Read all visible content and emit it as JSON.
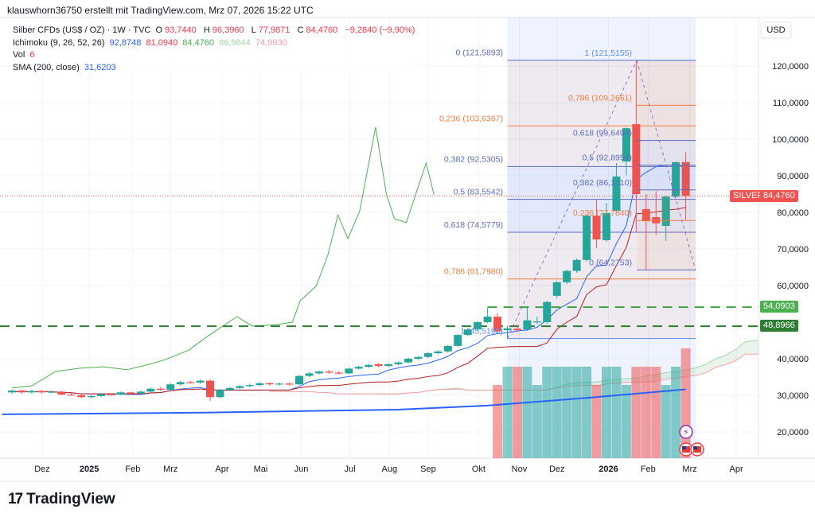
{
  "credit": "klauswhorn36750 erstellt mit TradingView.com, Mrz 07, 2026 15:22 UTC",
  "legend": {
    "symbol": "Silber CFDs (US$ / OZ) · 1W · TVC",
    "o_label": "O",
    "o": "93,7440",
    "h_label": "H",
    "h": "96,3960",
    "l_label": "L",
    "l": "77,9871",
    "c_label": "C",
    "c": "84,4760",
    "change": "−9,2840 (−9,90%)",
    "ichimoku_label": "Ichimoku (9, 26, 52, 26)",
    "ichimoku_values": [
      "92,8748",
      "81,0940",
      "84,4760",
      "86,9844",
      "74,9930"
    ],
    "vol_label": "Vol",
    "vol": "6",
    "sma_label": "SMA (200, close)",
    "sma": "31,6203"
  },
  "currency": "USD",
  "price_tags": {
    "symbol_name": "SILVER",
    "last": "84,4760",
    "last_value": 84.476,
    "level1": "54,0903",
    "level1_value": 54.0903,
    "level2": "48,8966",
    "level2_value": 48.8966
  },
  "logo_text": "TradingView",
  "colors": {
    "up": "#26a69a",
    "down": "#ef5350",
    "tenkan": "#2962ff",
    "kijun": "#b71c1c",
    "sma": "#2962ff",
    "overlay": "#4caf50",
    "fib_blue": "#5c6bc0",
    "fib_orange": "#f57c3a",
    "dash": "#43a047"
  },
  "chart_data": {
    "type": "candlestick",
    "title": "Silber CFDs (US$ / OZ) · 1W · TVC",
    "ylim": [
      14,
      134
    ],
    "y_ticks": [
      {
        "value": 120,
        "label": "120,0000"
      },
      {
        "value": 110,
        "label": "110,0000"
      },
      {
        "value": 100,
        "label": "100,0000"
      },
      {
        "value": 90,
        "label": "90,0000"
      },
      {
        "value": 80,
        "label": "80,0000"
      },
      {
        "value": 70,
        "label": "70,0000"
      },
      {
        "value": 60,
        "label": "60,0000"
      },
      {
        "value": 40,
        "label": "40,0000"
      },
      {
        "value": 30,
        "label": "30,0000"
      },
      {
        "value": 20,
        "label": "20,0000"
      }
    ],
    "x_ticks": [
      {
        "week": 3.05,
        "label": "Dez"
      },
      {
        "week": 7.8,
        "label": "2025",
        "bold": true
      },
      {
        "week": 12.2,
        "label": "Feb"
      },
      {
        "week": 16,
        "label": "Mrz"
      },
      {
        "week": 21.2,
        "label": "Apr"
      },
      {
        "week": 25.1,
        "label": "Mai"
      },
      {
        "week": 29.2,
        "label": "Jun"
      },
      {
        "week": 34.1,
        "label": "Jul"
      },
      {
        "week": 38.1,
        "label": "Aug"
      },
      {
        "week": 42,
        "label": "Sep"
      },
      {
        "week": 47.1,
        "label": "Okt"
      },
      {
        "week": 51.2,
        "label": "Nov"
      },
      {
        "week": 55,
        "label": "Dez"
      },
      {
        "week": 60.2,
        "label": "2026",
        "bold": true
      },
      {
        "week": 64.2,
        "label": "Feb"
      },
      {
        "week": 68.4,
        "label": "Mrz"
      },
      {
        "week": 73.1,
        "label": "Apr"
      }
    ],
    "candles_ohlc": [
      [
        30.8,
        31.6,
        30.4,
        31.3
      ],
      [
        31.3,
        31.6,
        30.4,
        30.8
      ],
      [
        30.8,
        31.5,
        30.5,
        31.2
      ],
      [
        31.2,
        31.4,
        30.5,
        30.8
      ],
      [
        30.8,
        31.3,
        30.5,
        31.0
      ],
      [
        31.0,
        31.2,
        30.0,
        30.2
      ],
      [
        30.2,
        30.5,
        29.8,
        30.0
      ],
      [
        30.0,
        30.3,
        29.2,
        29.5
      ],
      [
        29.5,
        30.1,
        29.2,
        29.8
      ],
      [
        29.8,
        30.6,
        29.5,
        30.3
      ],
      [
        30.3,
        30.6,
        29.9,
        30.2
      ],
      [
        30.2,
        31.1,
        30.0,
        30.8
      ],
      [
        30.8,
        31.0,
        30.2,
        30.5
      ],
      [
        30.5,
        31.3,
        30.3,
        31.0
      ],
      [
        31.0,
        32.1,
        30.8,
        31.8
      ],
      [
        31.8,
        32.3,
        31.2,
        31.5
      ],
      [
        31.5,
        33.3,
        31.3,
        33.0
      ],
      [
        33.0,
        33.9,
        32.7,
        33.6
      ],
      [
        33.6,
        34.0,
        33.2,
        33.5
      ],
      [
        33.5,
        34.3,
        33.2,
        34.0
      ],
      [
        34.0,
        34.4,
        28.5,
        29.5
      ],
      [
        29.5,
        31.8,
        29.2,
        31.5
      ],
      [
        31.5,
        32.3,
        31.2,
        32.0
      ],
      [
        32.0,
        32.8,
        31.7,
        32.5
      ],
      [
        32.5,
        33.1,
        32.2,
        32.8
      ],
      [
        32.8,
        33.6,
        32.5,
        33.3
      ],
      [
        33.3,
        33.6,
        32.7,
        33.0
      ],
      [
        33.0,
        33.5,
        32.7,
        33.2
      ],
      [
        33.2,
        33.5,
        32.7,
        33.0
      ],
      [
        33.0,
        35.6,
        32.8,
        35.3
      ],
      [
        35.3,
        36.3,
        35.0,
        36.0
      ],
      [
        36.0,
        36.8,
        35.7,
        36.5
      ],
      [
        36.5,
        36.9,
        35.9,
        36.2
      ],
      [
        36.2,
        36.6,
        35.7,
        36.0
      ],
      [
        36.0,
        37.6,
        35.8,
        37.3
      ],
      [
        37.3,
        38.1,
        37.0,
        37.8
      ],
      [
        37.8,
        38.6,
        37.5,
        38.3
      ],
      [
        38.5,
        38.8,
        37.7,
        38.0
      ],
      [
        38.0,
        38.8,
        37.7,
        38.5
      ],
      [
        38.5,
        39.3,
        38.2,
        39.0
      ],
      [
        39.0,
        40.3,
        38.7,
        40.0
      ],
      [
        40.0,
        40.8,
        39.7,
        40.5
      ],
      [
        40.5,
        41.8,
        40.2,
        41.5
      ],
      [
        41.5,
        42.3,
        41.2,
        42.0
      ],
      [
        42.0,
        43.8,
        41.7,
        43.5
      ],
      [
        43.5,
        46.8,
        43.2,
        46.5
      ],
      [
        46.5,
        48.3,
        46.2,
        48.0
      ],
      [
        48.0,
        50.3,
        47.7,
        50.0
      ],
      [
        50.0,
        54.0,
        49.7,
        51.5
      ],
      [
        51.5,
        52.5,
        47.0,
        47.5
      ],
      [
        47.8,
        49.0,
        45.5,
        48.3
      ],
      [
        48.2,
        49.3,
        47.3,
        47.8
      ],
      [
        48.0,
        54.0,
        47.6,
        50.5
      ],
      [
        50.0,
        51.5,
        49.5,
        50.2
      ],
      [
        50.0,
        55.8,
        49.6,
        55.5
      ],
      [
        57.2,
        61.2,
        56.6,
        60.9
      ],
      [
        60.9,
        64.3,
        60.4,
        64.0
      ],
      [
        64.0,
        67.4,
        63.5,
        67.0
      ],
      [
        67.0,
        79.4,
        66.6,
        79.1
      ],
      [
        79.1,
        83.5,
        70.2,
        72.6
      ],
      [
        72.4,
        82.6,
        72.0,
        79.8
      ],
      [
        80.4,
        93.5,
        80.0,
        89.8
      ],
      [
        93.9,
        103.2,
        90.2,
        103.0
      ],
      [
        104.1,
        121.5,
        74.6,
        85.0
      ],
      [
        80.9,
        85.0,
        64.3,
        77.6
      ],
      [
        78.7,
        85.8,
        73.9,
        77.0
      ],
      [
        76.3,
        84.6,
        72.2,
        84.3
      ],
      [
        84.3,
        94.0,
        84.0,
        93.7
      ],
      [
        93.744,
        96.396,
        77.987,
        84.476
      ]
    ],
    "volume": {
      "start_week": 49,
      "values": [
        4,
        5,
        5,
        5,
        4,
        5,
        5,
        5,
        5,
        5,
        4,
        5,
        5,
        4,
        5,
        5,
        5,
        4,
        5,
        6
      ]
    },
    "overlay_line": {
      "name": "comparison",
      "points": [
        [
          0,
          32.0
        ],
        [
          2,
          32.6
        ],
        [
          4.4,
          36.5
        ],
        [
          6.8,
          37.4
        ],
        [
          9.2,
          37.8
        ],
        [
          11.6,
          37.0
        ],
        [
          13.9,
          38.5
        ],
        [
          15.5,
          39.8
        ],
        [
          17.9,
          42.4
        ],
        [
          19.5,
          45.7
        ],
        [
          22.7,
          51.5
        ],
        [
          24.3,
          48.9
        ],
        [
          26.7,
          49.3
        ],
        [
          28.3,
          50.0
        ],
        [
          29.1,
          55.9
        ],
        [
          30.7,
          59.8
        ],
        [
          31.9,
          68.5
        ],
        [
          32.9,
          79.3
        ],
        [
          33.9,
          72.8
        ],
        [
          35.1,
          80.4
        ],
        [
          36.7,
          103.3
        ],
        [
          37.8,
          84.8
        ],
        [
          38.6,
          78.3
        ],
        [
          39.8,
          77.2
        ],
        [
          41.8,
          93.5
        ],
        [
          42.6,
          84.8
        ]
      ]
    },
    "sma200": [
      [
        -1,
        24.8
      ],
      [
        20,
        25.3
      ],
      [
        39,
        26.1
      ],
      [
        48,
        27.2
      ],
      [
        58,
        29.3
      ],
      [
        68,
        31.62
      ]
    ],
    "fib_left": {
      "start_week": 50,
      "end_week": 69,
      "levels": [
        {
          "ratio": 0,
          "value": 121.5893,
          "label": "0 (121,5893)",
          "color": "blue"
        },
        {
          "ratio": 0.236,
          "value": 103.6367,
          "label": "0,236 (103,6367)",
          "color": "orange"
        },
        {
          "ratio": 0.382,
          "value": 92.5305,
          "label": "0,382 (92,5305)",
          "color": "blue"
        },
        {
          "ratio": 0.5,
          "value": 83.5542,
          "label": "0,5 (83,5542)",
          "color": "blue"
        },
        {
          "ratio": 0.618,
          "value": 74.5779,
          "label": "0,618 (74,5779)",
          "color": "blue"
        },
        {
          "ratio": 0.786,
          "value": 61.798,
          "label": "0,786 (61,7980)",
          "color": "orange"
        },
        {
          "ratio": 1,
          "value": 45.519,
          "label": "1 (45,5190)",
          "color": "sky"
        }
      ]
    },
    "fib_right": {
      "start_week": 63.05,
      "end_week": 69,
      "levels": [
        {
          "ratio": 1,
          "value": 121.5155,
          "label": "1 (121,5155)",
          "color": "sky"
        },
        {
          "ratio": 0.786,
          "value": 109.2661,
          "label": "0,786 (109,2661)",
          "color": "orange"
        },
        {
          "ratio": 0.618,
          "value": 99.6494,
          "label": "0,618 (99,6494)",
          "color": "blue"
        },
        {
          "ratio": 0.5,
          "value": 92.8954,
          "label": "0,5 (92,8954)",
          "color": "blue"
        },
        {
          "ratio": 0.382,
          "value": 86.141,
          "label": "0,382 (86,1410)",
          "color": "blue"
        },
        {
          "ratio": 0.236,
          "value": 77.784,
          "label": "0,236 (77,7840)",
          "color": "orange"
        },
        {
          "ratio": 0,
          "value": 64.2753,
          "label": "0 (64,2753)",
          "color": "blue"
        }
      ]
    },
    "highlight_range_weeks": [
      50,
      63.05
    ],
    "highlight_range2_weeks": [
      63.05,
      69
    ]
  }
}
